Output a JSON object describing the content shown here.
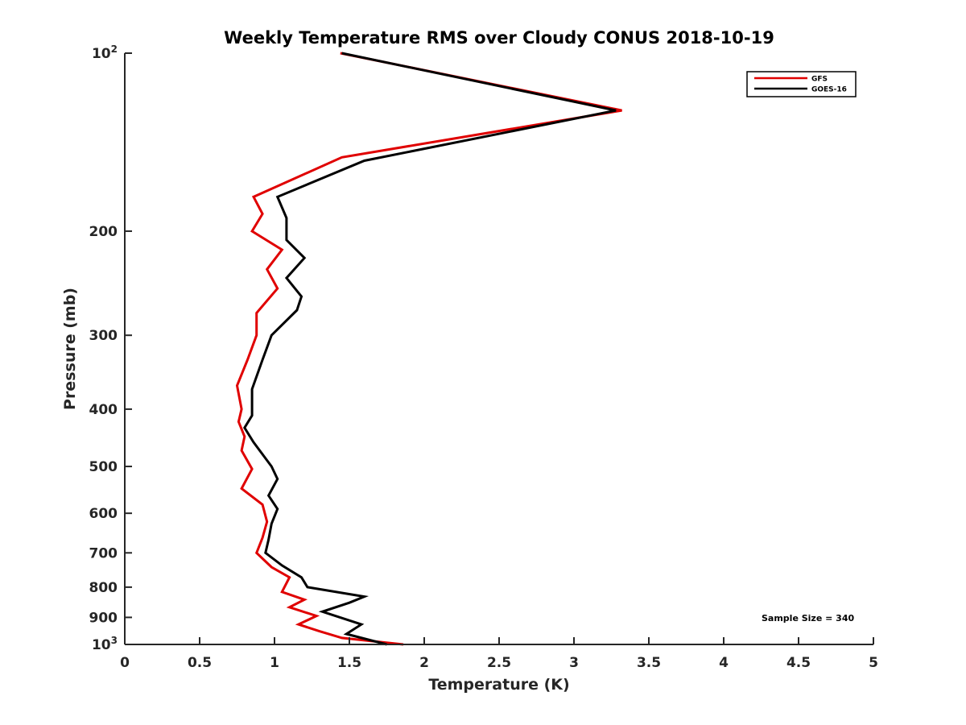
{
  "chart_data": {
    "type": "line",
    "title": "Weekly Temperature RMS over Cloudy CONUS 2018-10-19",
    "xlabel": "Temperature (K)",
    "ylabel": "Pressure (mb)",
    "xlim": [
      0,
      5
    ],
    "ylim": [
      100,
      1000
    ],
    "y_scale": "log",
    "y_reversed": true,
    "grid": false,
    "legend_position": "top-right",
    "x_ticks": [
      0,
      0.5,
      1,
      1.5,
      2,
      2.5,
      3,
      3.5,
      4,
      4.5,
      5
    ],
    "x_tick_labels": [
      "0",
      "0.5",
      "1",
      "1.5",
      "2",
      "2.5",
      "3",
      "3.5",
      "4",
      "4.5",
      "5"
    ],
    "y_ticks": [
      {
        "value": 100,
        "label": "10",
        "sup": "2"
      },
      {
        "value": 200,
        "label": "200",
        "sup": ""
      },
      {
        "value": 300,
        "label": "300",
        "sup": ""
      },
      {
        "value": 400,
        "label": "400",
        "sup": ""
      },
      {
        "value": 500,
        "label": "500",
        "sup": ""
      },
      {
        "value": 600,
        "label": "600",
        "sup": ""
      },
      {
        "value": 700,
        "label": "700",
        "sup": ""
      },
      {
        "value": 800,
        "label": "800",
        "sup": ""
      },
      {
        "value": 900,
        "label": "900",
        "sup": ""
      },
      {
        "value": 1000,
        "label": "10",
        "sup": "3"
      }
    ],
    "annotation": "Sample Size = 340",
    "series": [
      {
        "name": "GFS",
        "color": "#e00000",
        "points": [
          [
            1.44,
            100
          ],
          [
            3.32,
            125
          ],
          [
            1.45,
            150
          ],
          [
            0.86,
            175
          ],
          [
            0.92,
            187
          ],
          [
            0.85,
            200
          ],
          [
            1.05,
            215
          ],
          [
            0.95,
            232
          ],
          [
            1.02,
            250
          ],
          [
            0.88,
            275
          ],
          [
            0.88,
            300
          ],
          [
            0.82,
            330
          ],
          [
            0.75,
            365
          ],
          [
            0.78,
            400
          ],
          [
            0.76,
            420
          ],
          [
            0.8,
            445
          ],
          [
            0.78,
            470
          ],
          [
            0.85,
            505
          ],
          [
            0.78,
            545
          ],
          [
            0.92,
            580
          ],
          [
            0.95,
            620
          ],
          [
            0.92,
            660
          ],
          [
            0.88,
            700
          ],
          [
            0.98,
            740
          ],
          [
            1.1,
            770
          ],
          [
            1.05,
            815
          ],
          [
            1.2,
            840
          ],
          [
            1.1,
            865
          ],
          [
            1.28,
            895
          ],
          [
            1.16,
            925
          ],
          [
            1.3,
            950
          ],
          [
            1.45,
            975
          ],
          [
            1.86,
            1000
          ]
        ]
      },
      {
        "name": "GOES-16",
        "color": "#000000",
        "points": [
          [
            1.45,
            100
          ],
          [
            3.28,
            125
          ],
          [
            1.6,
            152
          ],
          [
            1.02,
            175
          ],
          [
            1.08,
            190
          ],
          [
            1.08,
            207
          ],
          [
            1.2,
            222
          ],
          [
            1.08,
            240
          ],
          [
            1.18,
            258
          ],
          [
            1.15,
            272
          ],
          [
            0.98,
            300
          ],
          [
            0.92,
            330
          ],
          [
            0.85,
            370
          ],
          [
            0.85,
            410
          ],
          [
            0.8,
            430
          ],
          [
            0.86,
            455
          ],
          [
            0.98,
            500
          ],
          [
            1.02,
            525
          ],
          [
            0.96,
            560
          ],
          [
            1.02,
            590
          ],
          [
            0.98,
            625
          ],
          [
            0.96,
            665
          ],
          [
            0.94,
            700
          ],
          [
            1.05,
            735
          ],
          [
            1.18,
            770
          ],
          [
            1.22,
            800
          ],
          [
            1.6,
            830
          ],
          [
            1.5,
            850
          ],
          [
            1.32,
            880
          ],
          [
            1.58,
            925
          ],
          [
            1.48,
            960
          ],
          [
            1.75,
            1000
          ]
        ]
      }
    ]
  }
}
